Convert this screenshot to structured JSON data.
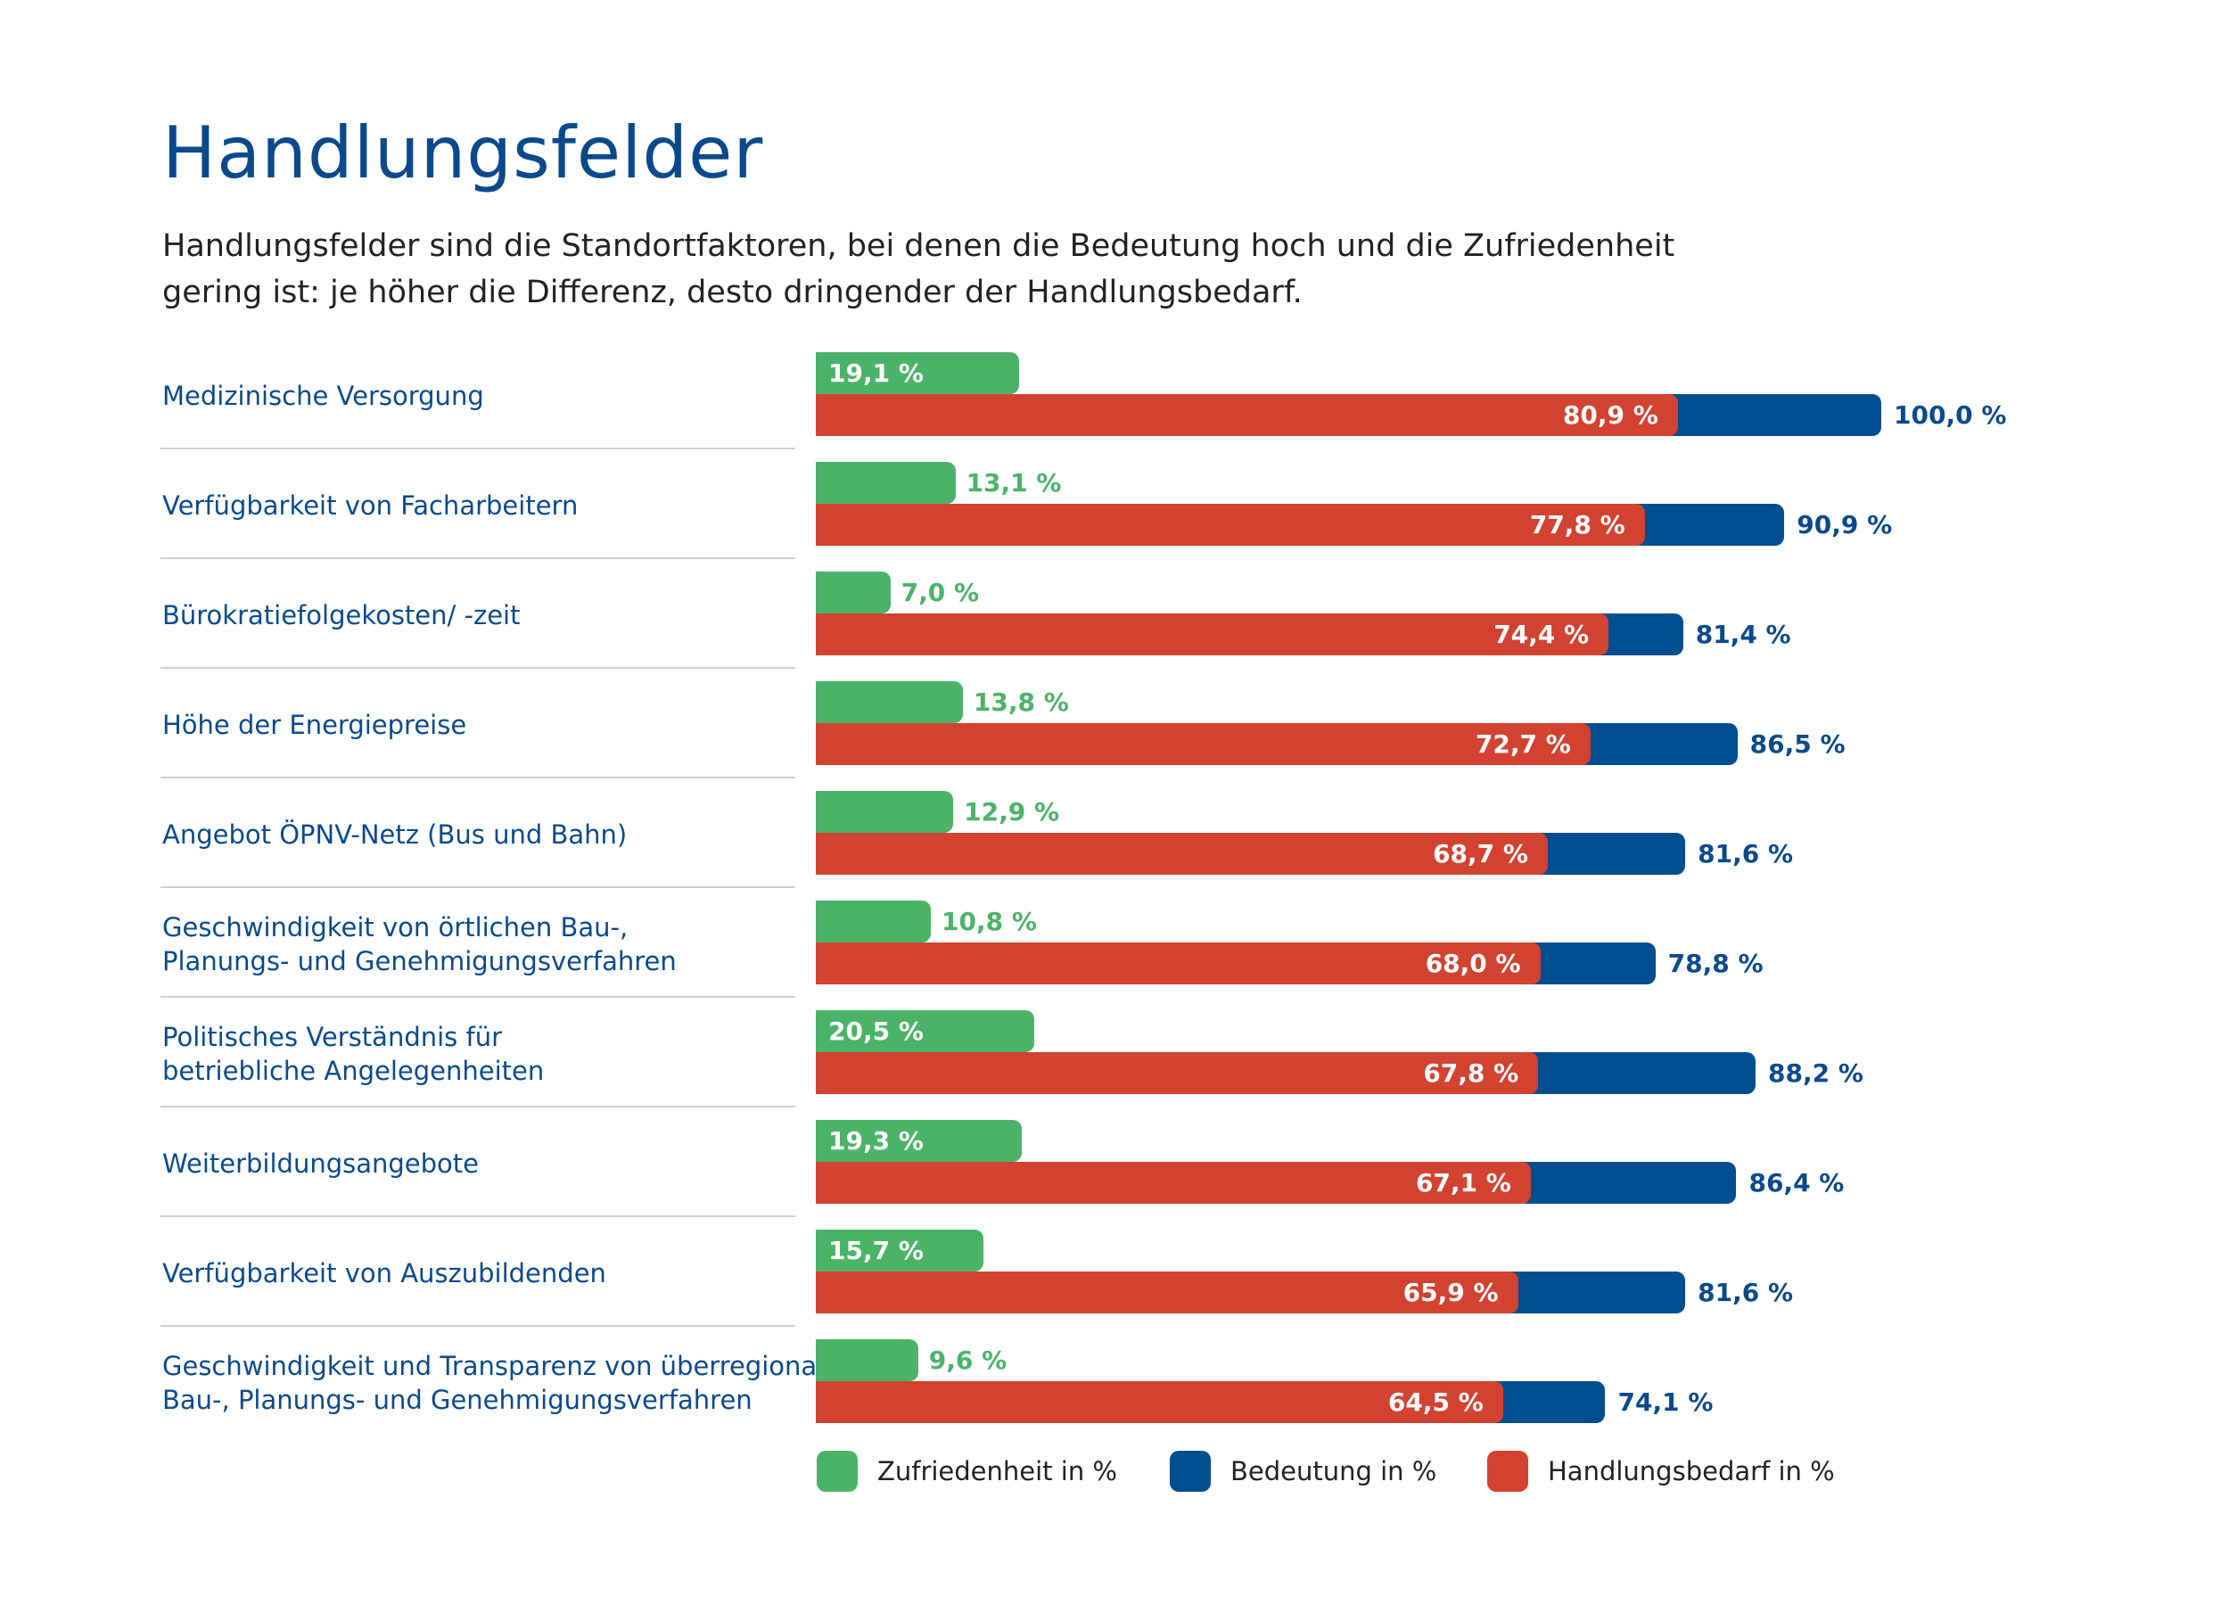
{
  "title": "Handlungsfelder",
  "subtitle": {
    "line1": "Handlungsfelder sind die Standortfaktoren, bei denen die Bedeutung hoch und die Zufriedenheit",
    "line2": "gering ist: je höher die Differenz, desto dringender der Handlungsbedarf."
  },
  "colors": {
    "zufriedenheit": "#4bb368",
    "bedeutung": "#004e8f",
    "handlungsbedarf": "#d24230",
    "title": "#0a4a8c"
  },
  "chart_data": {
    "type": "bar",
    "orientation": "horizontal",
    "title": "Handlungsfelder",
    "xlim": [
      0,
      100
    ],
    "categories": [
      [
        "Medizinische Versorgung"
      ],
      [
        "Verfügbarkeit von Facharbeitern"
      ],
      [
        "Bürokratiefolgekosten/ -zeit"
      ],
      [
        "Höhe der Energiepreise"
      ],
      [
        "Angebot ÖPNV-Netz (Bus und Bahn)"
      ],
      [
        "Geschwindigkeit von örtlichen Bau-,",
        "Planungs- und Genehmigungsverfahren"
      ],
      [
        "Politisches Verständnis für",
        "betriebliche Angelegenheiten"
      ],
      [
        "Weiterbildungsangebote"
      ],
      [
        "Verfügbarkeit von Auszubildenden"
      ],
      [
        "Geschwindigkeit und Transparenz von überregionalen",
        "Bau-, Planungs- und Genehmigungsverfahren"
      ]
    ],
    "series": [
      {
        "name": "Zufriedenheit in %",
        "values": [
          19.1,
          13.1,
          7.0,
          13.8,
          12.9,
          10.8,
          20.5,
          19.3,
          15.7,
          9.6
        ],
        "labels": [
          "19,1 %",
          "13,1 %",
          "7,0 %",
          "13,8 %",
          "12,9 %",
          "10,8 %",
          "20,5 %",
          "19,3 %",
          "15,7 %",
          "9,6 %"
        ]
      },
      {
        "name": "Bedeutung in %",
        "values": [
          100.0,
          90.9,
          81.4,
          86.5,
          81.6,
          78.8,
          88.2,
          86.4,
          81.6,
          74.1
        ],
        "labels": [
          "100,0 %",
          "90,9 %",
          "81,4 %",
          "86,5 %",
          "81,6 %",
          "78,8 %",
          "88,2 %",
          "86,4 %",
          "81,6 %",
          "74,1 %"
        ]
      },
      {
        "name": "Handlungsbedarf in %",
        "values": [
          80.9,
          77.8,
          74.4,
          72.7,
          68.7,
          68.0,
          67.8,
          67.1,
          65.9,
          64.5
        ],
        "labels": [
          "80,9 %",
          "77,8 %",
          "74,4 %",
          "72,7 %",
          "68,7 %",
          "68,0 %",
          "67,8 %",
          "67,1 %",
          "65,9 %",
          "64,5 %"
        ]
      }
    ],
    "legend": [
      "Zufriedenheit in %",
      "Bedeutung in %",
      "Handlungsbedarf in %"
    ],
    "legend_position": "bottom"
  }
}
